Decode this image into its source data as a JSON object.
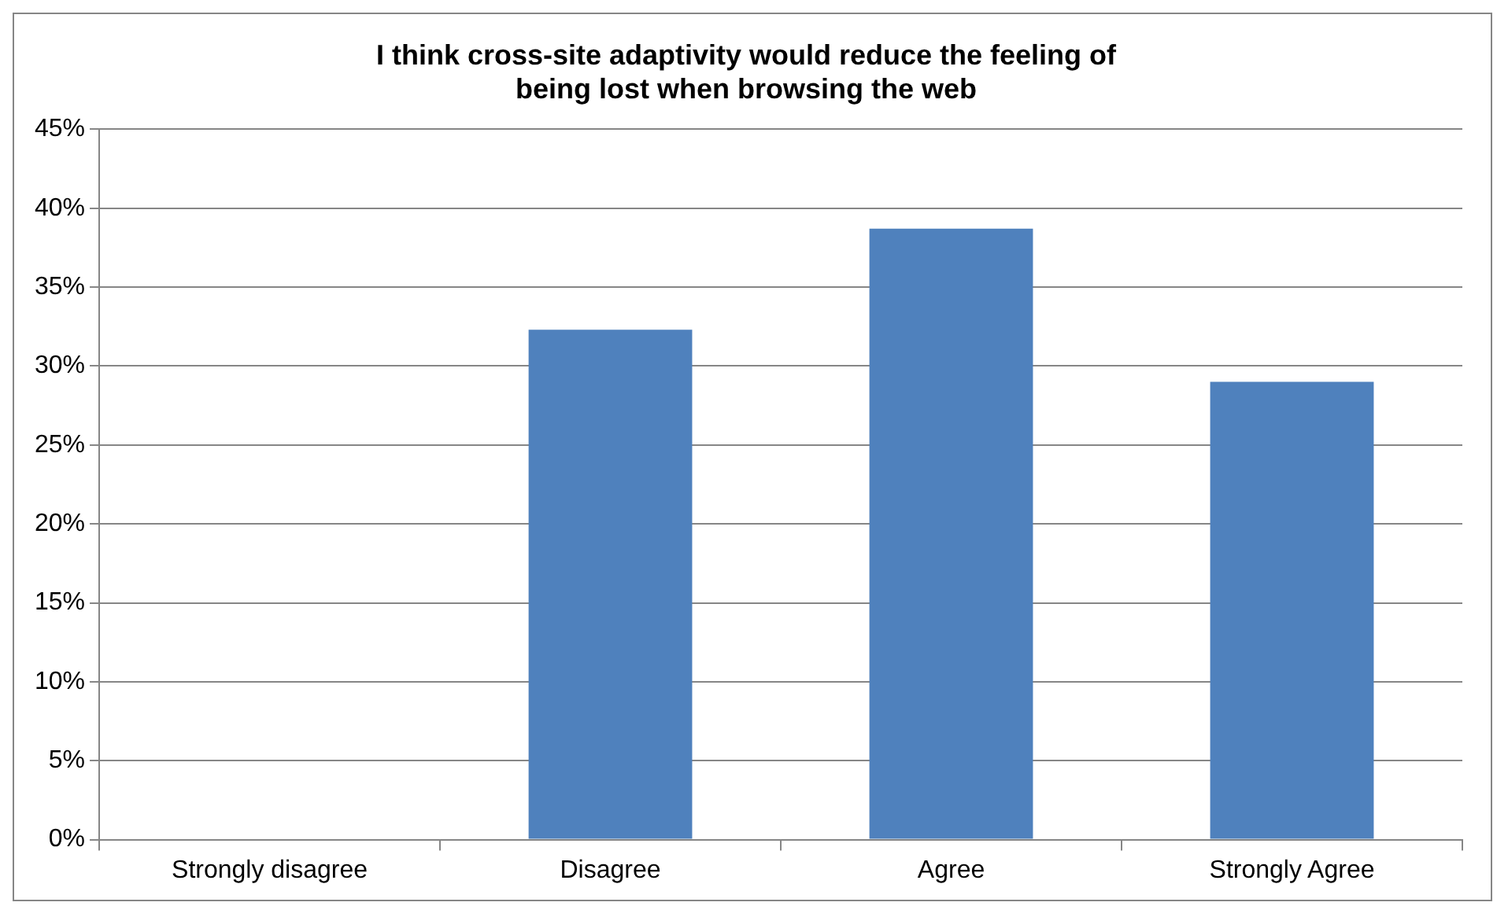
{
  "chart_data": {
    "type": "bar",
    "title": "I think cross-site adaptivity would reduce the feeling of being lost when browsing the web",
    "categories": [
      "Strongly disagree",
      "Disagree",
      "Agree",
      "Strongly Agree"
    ],
    "values": [
      0,
      32.3,
      38.7,
      29.0
    ],
    "color": "#4f81bd",
    "ylim": [
      0,
      45
    ],
    "yticks": [
      {
        "value": 0,
        "label": "0%"
      },
      {
        "value": 5,
        "label": "5%"
      },
      {
        "value": 10,
        "label": "10%"
      },
      {
        "value": 15,
        "label": "15%"
      },
      {
        "value": 20,
        "label": "20%"
      },
      {
        "value": 25,
        "label": "25%"
      },
      {
        "value": 30,
        "label": "30%"
      },
      {
        "value": 35,
        "label": "35%"
      },
      {
        "value": 40,
        "label": "40%"
      },
      {
        "value": 45,
        "label": "45%"
      }
    ],
    "grid": "y",
    "legend": false
  }
}
